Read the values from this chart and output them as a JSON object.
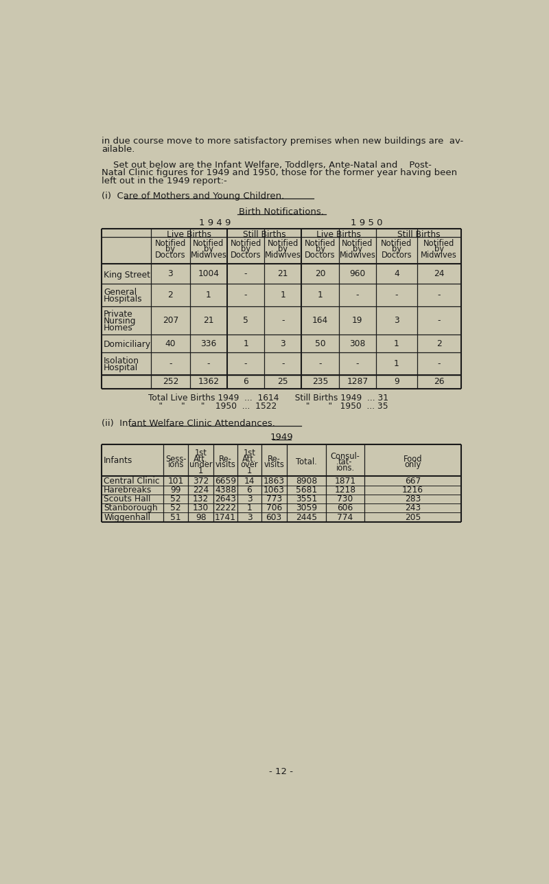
{
  "bg_color": "#cbc7b0",
  "text_color": "#1a1a1a",
  "intro_lines": [
    "in due course move to more satisfactory premises when new buildings are  av-",
    "ailable."
  ],
  "para2_lines": [
    "    Set out below are the Infant Welfare, Toddlers, Ante-Natal and    Post-",
    "Natal Clinic figures for 1949 and 1950, those for the former year having been",
    "left out in the 1949 report:-"
  ],
  "section_i_heading": "(i)  Care of Mothers and Young Children.",
  "birth_notif_title": "Birth Notifications.",
  "year_1949": "1 9 4 9",
  "year_1950": "1 9 5 0",
  "table1_rows": [
    {
      "labels": [
        "King Street"
      ],
      "vals": [
        "3",
        "1004",
        "-",
        "21",
        "20",
        "960",
        "4",
        "24"
      ]
    },
    {
      "labels": [
        "General",
        "Hospitals"
      ],
      "vals": [
        "2",
        "1",
        "-",
        "1",
        "1",
        "-",
        "-",
        "-"
      ]
    },
    {
      "labels": [
        "Private",
        "Nursing",
        "Homes"
      ],
      "vals": [
        "207",
        "21",
        "5",
        "-",
        "164",
        "19",
        "3",
        "-"
      ]
    },
    {
      "labels": [
        "Domiciliary"
      ],
      "vals": [
        "40",
        "336",
        "1",
        "3",
        "50",
        "308",
        "1",
        "2"
      ]
    },
    {
      "labels": [
        "Isolation",
        "Hospital"
      ],
      "vals": [
        "-",
        "-",
        "-",
        "-",
        "-",
        "-",
        "1",
        "-"
      ]
    }
  ],
  "table1_totals": [
    "252",
    "1362",
    "6",
    "25",
    "235",
    "1287",
    "9",
    "26"
  ],
  "summary_line1": "Total Live Births 1949  ...  1614      Still Births 1949  ... 31",
  "summary_line2": "    \"       \"      \"    1950  ...  1522           \"       \"   1950  ... 35",
  "section_ii_heading": "(ii)  Infant Welfare Clinic Attendances.",
  "year_1949_2": "1949",
  "table2_rows": [
    {
      "label": "Central Clinic",
      "vals": [
        "101",
        "372",
        "6659",
        "14",
        "1863",
        "8908",
        "1871",
        "667"
      ]
    },
    {
      "label": "Harebreaks",
      "vals": [
        "99",
        "224",
        "4388",
        "6",
        "1063",
        "5681",
        "1218",
        "1216"
      ]
    },
    {
      "label": "Scouts Hall",
      "vals": [
        "52",
        "132",
        "2643",
        "3",
        "773",
        "3551",
        "730",
        "283"
      ]
    },
    {
      "label": "Stanborough",
      "vals": [
        "52",
        "130",
        "2222",
        "1",
        "706",
        "3059",
        "606",
        "243"
      ]
    },
    {
      "label": "Wiggenhall",
      "vals": [
        "51",
        "98",
        "1741",
        "3",
        "603",
        "2445",
        "774",
        "205"
      ]
    }
  ],
  "page_number": "- 12 -",
  "font_size_body": 9.5,
  "font_size_table": 8.8,
  "font_mono": "Courier New"
}
